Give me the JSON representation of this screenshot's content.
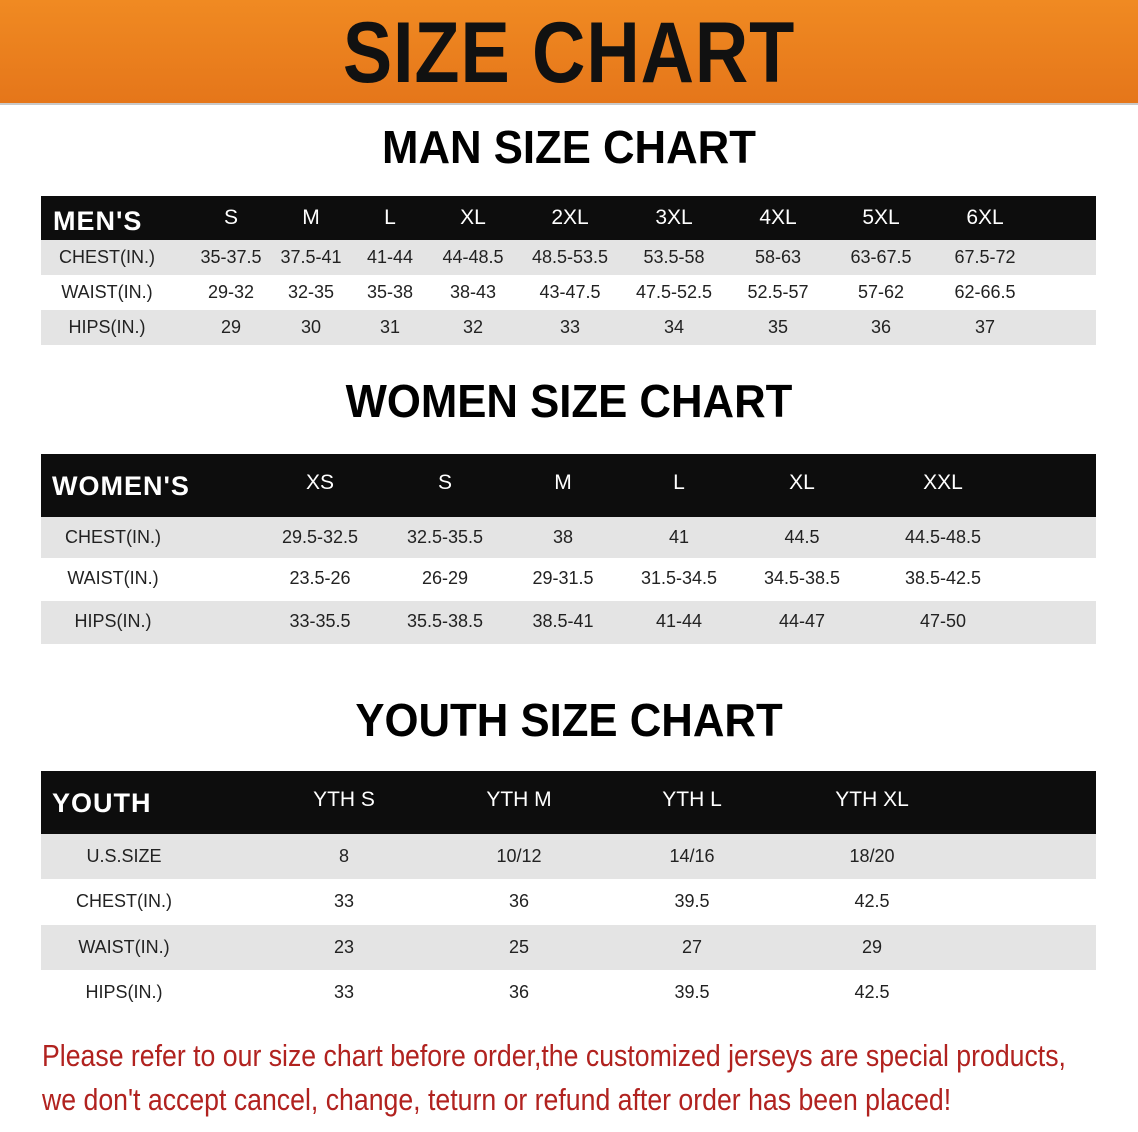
{
  "banner_title": "SIZE CHART",
  "men": {
    "title": "MAN SIZE CHART",
    "header": [
      "MEN'S",
      "S",
      "M",
      "L",
      "XL",
      "2XL",
      "3XL",
      "4XL",
      "5XL",
      "6XL"
    ],
    "rows": [
      [
        "CHEST(IN.)",
        "35-37.5",
        "37.5-41",
        "41-44",
        "44-48.5",
        "48.5-53.5",
        "53.5-58",
        "58-63",
        "63-67.5",
        "67.5-72"
      ],
      [
        "WAIST(IN.)",
        "29-32",
        "32-35",
        "35-38",
        "38-43",
        "43-47.5",
        "47.5-52.5",
        "52.5-57",
        "57-62",
        "62-66.5"
      ],
      [
        "HIPS(IN.)",
        "29",
        "30",
        "31",
        "32",
        "33",
        "34",
        "35",
        "36",
        "37"
      ]
    ]
  },
  "women": {
    "title": "WOMEN SIZE CHART",
    "header": [
      "WOMEN'S",
      "XS",
      "S",
      "M",
      "L",
      "XL",
      "XXL"
    ],
    "rows": [
      [
        "CHEST(IN.)",
        "29.5-32.5",
        "32.5-35.5",
        "38",
        "41",
        "44.5",
        "44.5-48.5"
      ],
      [
        "WAIST(IN.)",
        "23.5-26",
        "26-29",
        "29-31.5",
        "31.5-34.5",
        "34.5-38.5",
        "38.5-42.5"
      ],
      [
        "HIPS(IN.)",
        "33-35.5",
        "35.5-38.5",
        "38.5-41",
        "41-44",
        "44-47",
        "47-50"
      ]
    ]
  },
  "youth": {
    "title": "YOUTH SIZE CHART",
    "header": [
      "YOUTH",
      "YTH S",
      "YTH M",
      "YTH L",
      "YTH XL"
    ],
    "rows": [
      [
        "U.S.SIZE",
        "8",
        "10/12",
        "14/16",
        "18/20"
      ],
      [
        "CHEST(IN.)",
        "33",
        "36",
        "39.5",
        "42.5"
      ],
      [
        "WAIST(IN.)",
        "23",
        "25",
        "27",
        "29"
      ],
      [
        "HIPS(IN.)",
        "33",
        "36",
        "39.5",
        "42.5"
      ]
    ]
  },
  "footer": {
    "line1": "Please refer to our size chart before order,the customized jerseys are special products,",
    "line2": "we don't accept cancel, change, teturn or refund after order has been placed!"
  },
  "colors": {
    "banner": "#ec8020",
    "header_row": "#0d0d0d",
    "alt_row": "#e4e4e4",
    "footer_text": "#b1221f"
  }
}
